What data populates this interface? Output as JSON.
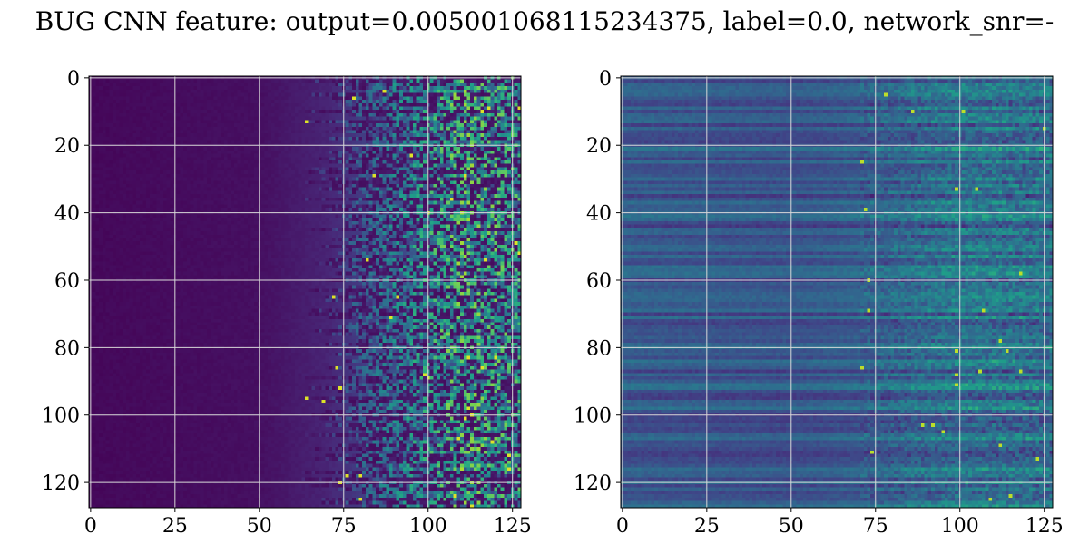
{
  "figure": {
    "title": "BUG CNN feature: output=0.005001068115234375, label=0.0, network_snr=-"
  },
  "colors": {
    "background": "#ffffff",
    "grid": "#d9d9d9",
    "axis": "#000000",
    "colormap": [
      "#440154",
      "#482878",
      "#3e4989",
      "#31688e",
      "#26828e",
      "#1f9e89",
      "#35b779",
      "#6ece58",
      "#b5de2b",
      "#fde725"
    ]
  },
  "chart_data": [
    {
      "type": "heatmap",
      "name": "left",
      "title": "",
      "xlabel": "",
      "ylabel": "",
      "rows": 128,
      "cols": 128,
      "xlim": [
        0,
        127
      ],
      "ylim": [
        127,
        0
      ],
      "xticks": [
        0,
        25,
        50,
        75,
        100,
        125
      ],
      "yticks": [
        0,
        20,
        40,
        60,
        80,
        100,
        120
      ],
      "grid": true,
      "colormap": "viridis",
      "pattern": {
        "description_values": "intensity by column",
        "col_profile": [
          {
            "col": 0,
            "level": 0.02
          },
          {
            "col": 50,
            "level": 0.04
          },
          {
            "col": 70,
            "level": 0.1
          },
          {
            "col": 90,
            "level": 0.25
          },
          {
            "col": 110,
            "level": 0.4
          },
          {
            "col": 127,
            "level": 0.35
          }
        ]
      }
    },
    {
      "type": "heatmap",
      "name": "right",
      "title": "",
      "xlabel": "",
      "ylabel": "",
      "rows": 128,
      "cols": 128,
      "xlim": [
        0,
        127
      ],
      "ylim": [
        127,
        0
      ],
      "xticks": [
        0,
        25,
        50,
        75,
        100,
        125
      ],
      "yticks": [
        0,
        20,
        40,
        60,
        80,
        100,
        120
      ],
      "grid": true,
      "colormap": "viridis",
      "pattern": {
        "col_profile": [
          {
            "col": 0,
            "level": 0.28
          },
          {
            "col": 50,
            "level": 0.26
          },
          {
            "col": 75,
            "level": 0.3
          },
          {
            "col": 100,
            "level": 0.38
          },
          {
            "col": 127,
            "level": 0.36
          }
        ]
      }
    }
  ]
}
